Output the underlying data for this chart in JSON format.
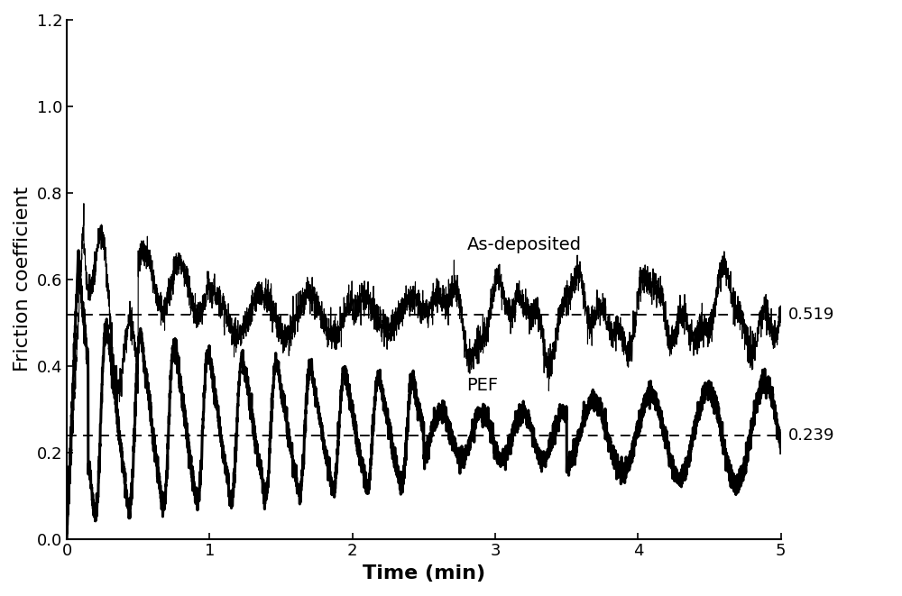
{
  "title": "",
  "xlabel": "Time (min)",
  "ylabel": "Friction coefficient",
  "xlim": [
    0,
    5
  ],
  "ylim": [
    0.0,
    1.2
  ],
  "yticks": [
    0.0,
    0.2,
    0.4,
    0.6,
    0.8,
    1.0,
    1.2
  ],
  "xticks": [
    0,
    1,
    2,
    3,
    4,
    5
  ],
  "as_deposited_mean": 0.519,
  "pef_mean": 0.239,
  "label_as": "As-deposited",
  "label_pef": "PEF",
  "annotation_as": "0.519",
  "annotation_pef": "0.239",
  "line_color": "#000000",
  "dashed_color": "#000000",
  "figsize": [
    10.0,
    6.61
  ],
  "dpi": 100
}
